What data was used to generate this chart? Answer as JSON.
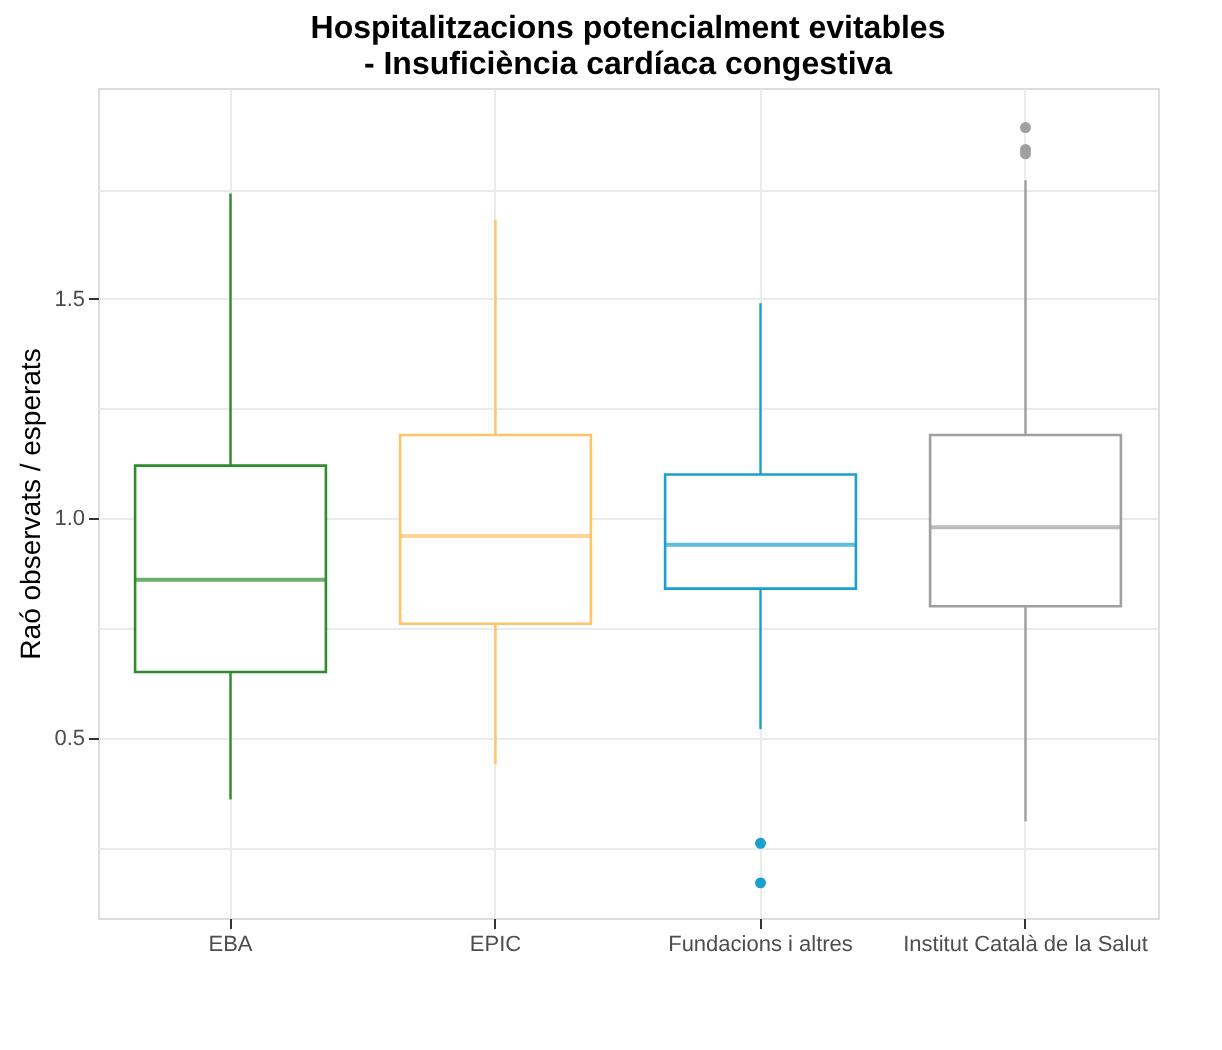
{
  "chart_data": {
    "type": "box",
    "title": "Hospitalitzacions potencialment evitables\n- Insuficiència cardíaca congestiva",
    "ylabel": "Raó observats / esperats",
    "categories": [
      "EBA",
      "EPIC",
      "Fundacions i altres",
      "Institut Català de la Salut"
    ],
    "colors": [
      "#2e8b2e",
      "#ffc469",
      "#1b9fce",
      "#a0a0a0"
    ],
    "boxes": [
      {
        "low": 0.36,
        "q1": 0.65,
        "median": 0.86,
        "q3": 1.12,
        "high": 1.74
      },
      {
        "low": 0.44,
        "q1": 0.76,
        "median": 0.96,
        "q3": 1.19,
        "high": 1.68
      },
      {
        "low": 0.52,
        "q1": 0.84,
        "median": 0.94,
        "q3": 1.1,
        "high": 1.49,
        "outliers": [
          0.26,
          0.17
        ]
      },
      {
        "low": 0.31,
        "q1": 0.8,
        "median": 0.98,
        "q3": 1.19,
        "high": 1.77,
        "outliers": [
          1.89,
          1.84,
          1.83
        ]
      }
    ],
    "ylim": [
      0.09,
      1.98
    ],
    "yticks": [
      {
        "value": 0.25,
        "label": null
      },
      {
        "value": 0.5,
        "label": "0.5"
      },
      {
        "value": 0.75,
        "label": null
      },
      {
        "value": 1.0,
        "label": "1.0"
      },
      {
        "value": 1.25,
        "label": null
      },
      {
        "value": 1.5,
        "label": "1.5"
      },
      {
        "value": 1.75,
        "label": null
      }
    ],
    "grid": true
  }
}
